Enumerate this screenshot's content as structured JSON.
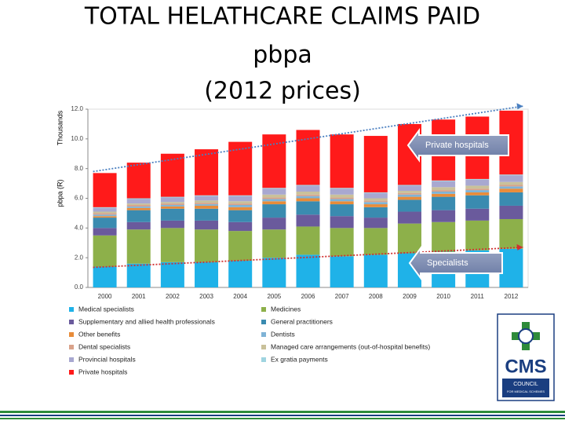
{
  "chart_data": {
    "type": "stacked_bar",
    "title": [
      "TOTAL HELATHCARE CLAIMS PAID",
      "pbpa",
      "(2012 prices)"
    ],
    "y_label": "pbpa (R)",
    "y_unit_label": "Thousands",
    "categories": [
      "2000",
      "2001",
      "2002",
      "2003",
      "2004",
      "2005",
      "2006",
      "2007",
      "2008",
      "2009",
      "2010",
      "2011",
      "2012"
    ],
    "ylim": [
      0,
      12
    ],
    "yticks": [
      {
        "value": 0,
        "label": "0.0"
      },
      {
        "value": 2,
        "label": "2.0"
      },
      {
        "value": 4,
        "label": "4.0"
      },
      {
        "value": 6,
        "label": "6.0"
      },
      {
        "value": 8,
        "label": "8.0"
      },
      {
        "value": 10,
        "label": "10.0"
      },
      {
        "value": 12,
        "label": "12.0"
      }
    ],
    "series": [
      {
        "name": "Medical specialists",
        "color": "#1fb2e8",
        "values": [
          1.4,
          1.6,
          1.7,
          1.7,
          1.8,
          2.0,
          2.2,
          2.1,
          2.2,
          2.3,
          2.4,
          2.5,
          2.6
        ]
      },
      {
        "name": "Medicines",
        "color": "#8db04a",
        "values": [
          2.1,
          2.3,
          2.3,
          2.2,
          2.0,
          1.9,
          1.9,
          1.9,
          1.8,
          2.0,
          2.0,
          2.0,
          2.0
        ]
      },
      {
        "name": "Supplementary and allied health professionals",
        "color": "#6a5a9c",
        "values": [
          0.5,
          0.5,
          0.5,
          0.6,
          0.6,
          0.8,
          0.8,
          0.8,
          0.7,
          0.8,
          0.8,
          0.8,
          0.9
        ]
      },
      {
        "name": "General practitioners",
        "color": "#3a8bb0",
        "values": [
          0.7,
          0.8,
          0.8,
          0.8,
          0.8,
          0.9,
          0.9,
          0.8,
          0.7,
          0.8,
          0.9,
          0.9,
          0.9
        ]
      },
      {
        "name": "Other benefits",
        "color": "#e88c3a",
        "values": [
          0.1,
          0.15,
          0.15,
          0.2,
          0.2,
          0.2,
          0.2,
          0.2,
          0.2,
          0.2,
          0.2,
          0.2,
          0.25
        ]
      },
      {
        "name": "Dentists",
        "color": "#7fb3d6",
        "values": [
          0.1,
          0.1,
          0.1,
          0.1,
          0.15,
          0.15,
          0.15,
          0.15,
          0.15,
          0.15,
          0.15,
          0.15,
          0.15
        ]
      },
      {
        "name": "Dental specialists",
        "color": "#d9a28a",
        "values": [
          0.1,
          0.1,
          0.1,
          0.1,
          0.1,
          0.1,
          0.1,
          0.1,
          0.1,
          0.1,
          0.1,
          0.1,
          0.1
        ]
      },
      {
        "name": "Managed care arrangements (out-of-hospital benefits)",
        "color": "#c9c19a",
        "values": [
          0.1,
          0.1,
          0.1,
          0.15,
          0.15,
          0.2,
          0.2,
          0.2,
          0.15,
          0.15,
          0.2,
          0.2,
          0.2
        ]
      },
      {
        "name": "Provincial hospitals",
        "color": "#a8a8d0",
        "values": [
          0.25,
          0.3,
          0.3,
          0.3,
          0.35,
          0.4,
          0.4,
          0.4,
          0.35,
          0.35,
          0.4,
          0.4,
          0.45
        ]
      },
      {
        "name": "Ex gratia payments",
        "color": "#9fd4e0",
        "values": [
          0.05,
          0.05,
          0.05,
          0.05,
          0.05,
          0.05,
          0.05,
          0.05,
          0.05,
          0.05,
          0.05,
          0.05,
          0.05
        ]
      },
      {
        "name": "Private hospitals",
        "color": "#ff1a1a",
        "values": [
          2.3,
          2.4,
          2.9,
          3.1,
          3.6,
          3.6,
          3.7,
          3.6,
          3.8,
          4.1,
          4.1,
          4.2,
          4.3
        ]
      }
    ],
    "trendlines": [
      {
        "color": "#4a7fc0",
        "values": [
          7.8,
          12.2
        ]
      },
      {
        "color": "#d03030",
        "values": [
          1.35,
          2.7
        ]
      }
    ],
    "annotations": [
      "Private hospitals",
      "Specialists"
    ],
    "logo": [
      "CMS",
      "COUNCIL",
      "FOR MEDICAL SCHEMES"
    ]
  }
}
